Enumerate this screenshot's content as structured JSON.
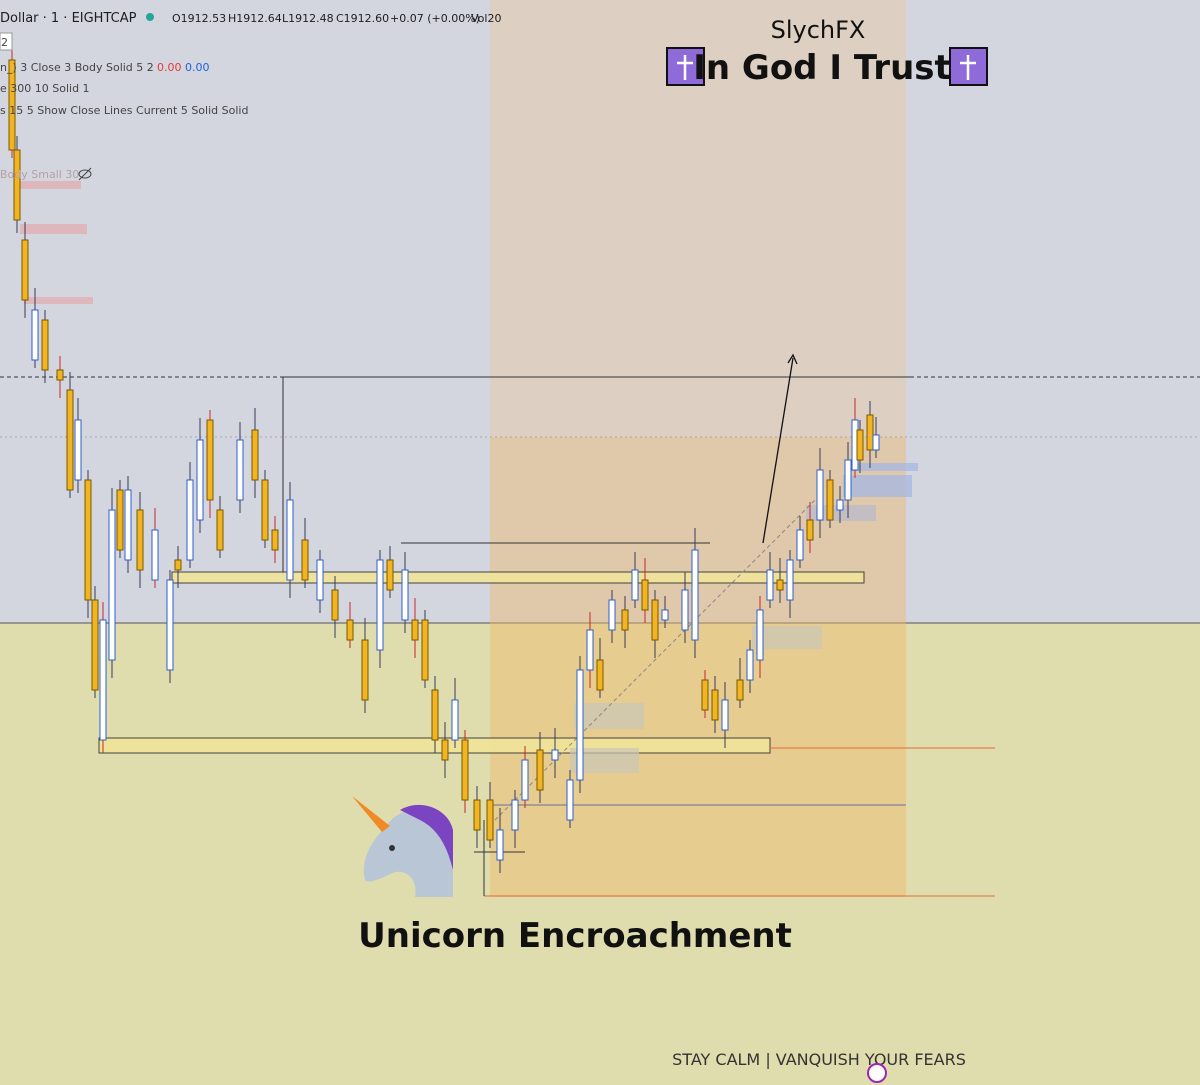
{
  "header": {
    "symbol": "Dollar · 1 · EIGHTCAP",
    "open": "O1912.53",
    "high": "H1912.64",
    "low": "L1912.48",
    "close": "C1912.60",
    "change": "+0.07 (+0.00%)",
    "volume": "Vol20"
  },
  "indicators": {
    "badge": "2",
    "line1": "n_) 3 Close 3 Body Solid 5 2",
    "line1_value_a": "0.00",
    "line1_value_b": "0.00",
    "line2": "e 300 10 Solid 1",
    "line3": "s 15 5 Show Close Lines Current 5 Solid Solid",
    "hidden_label": "Body Small 30"
  },
  "overlay": {
    "brand": "SlychFX",
    "motto": "In God I Trust",
    "caption": "Unicorn Encroachment",
    "footer": "STAY CALM | VANQUISH YOUR FEARS"
  }
}
